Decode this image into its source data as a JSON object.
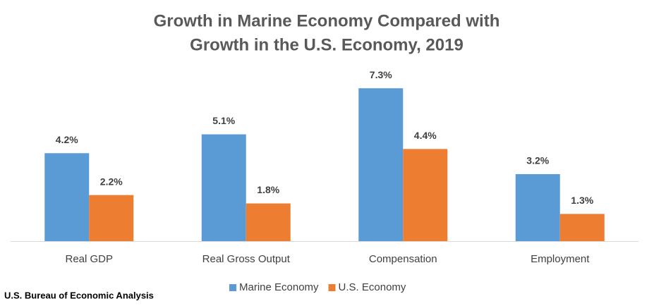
{
  "chart_data": {
    "type": "bar",
    "title": [
      "Growth in Marine Economy Compared with",
      "Growth in the U.S. Economy, 2019"
    ],
    "categories": [
      "Real GDP",
      "Real Gross Output",
      "Compensation",
      "Employment"
    ],
    "series": [
      {
        "name": "Marine Economy",
        "color": "#5b9bd5",
        "values": [
          4.2,
          5.1,
          7.3,
          3.2
        ],
        "value_labels": [
          "4.2%",
          "5.1%",
          "7.3%",
          "3.2%"
        ]
      },
      {
        "name": "U.S. Economy",
        "color": "#ed7d31",
        "values": [
          2.2,
          1.8,
          4.4,
          1.3
        ],
        "value_labels": [
          "2.2%",
          "1.8%",
          "4.4%",
          "1.3%"
        ]
      }
    ],
    "legend": "bottom",
    "source": "U.S. Bureau of Economic Analysis"
  }
}
